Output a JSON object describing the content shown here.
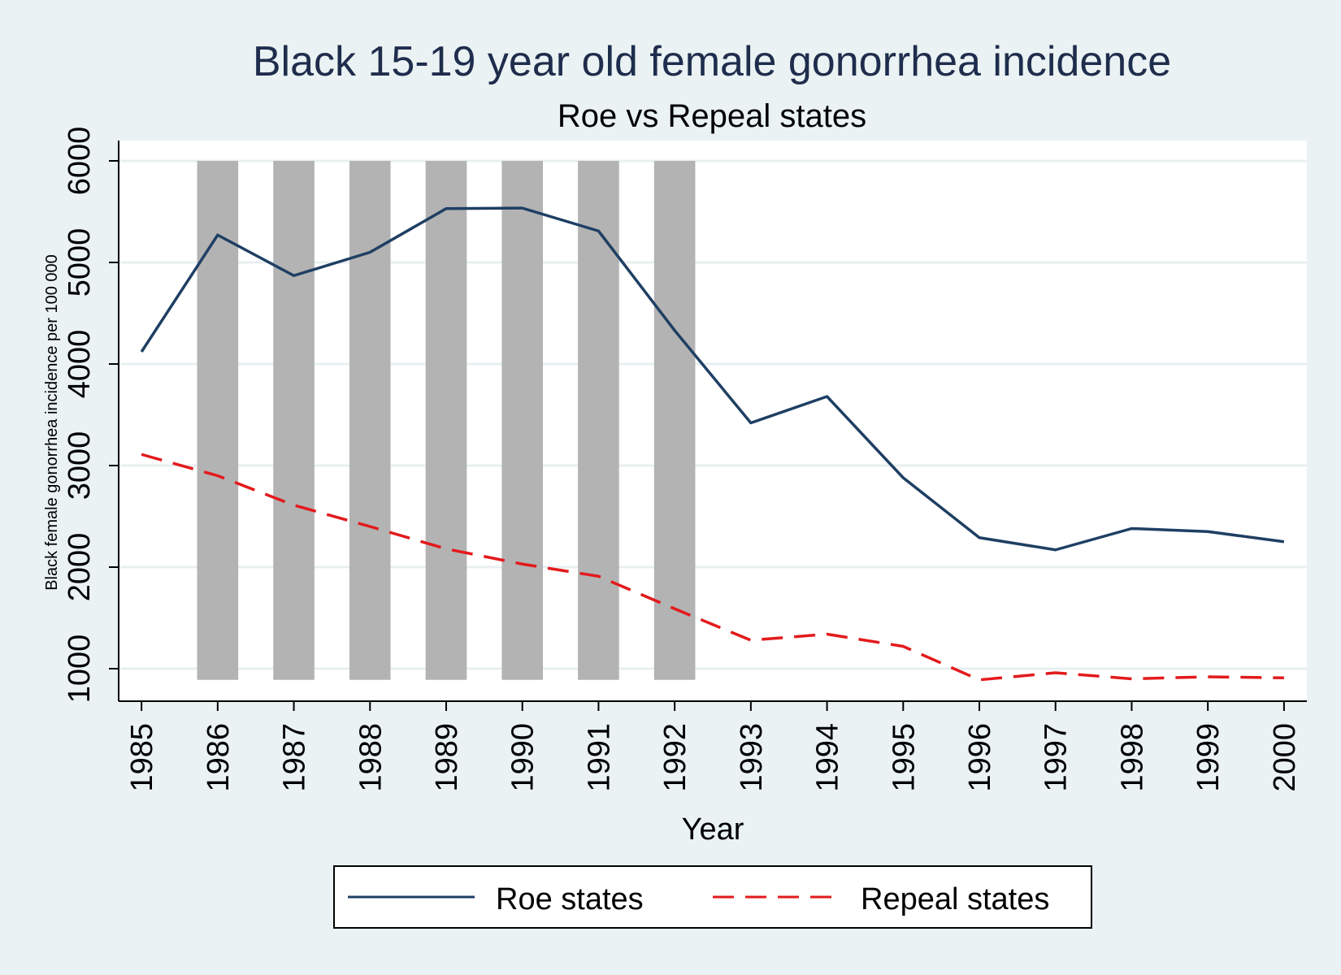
{
  "chart_data": {
    "type": "line",
    "title": "Black 15-19 year old female gonorrhea incidence",
    "subtitle": "Roe vs Repeal states",
    "xlabel": "Year",
    "ylabel": "Black female gonorrhea incidence per 100 000",
    "x": [
      1985,
      1986,
      1987,
      1988,
      1989,
      1990,
      1991,
      1992,
      1993,
      1994,
      1995,
      1996,
      1997,
      1998,
      1999,
      2000
    ],
    "xticks": [
      "1985",
      "1986",
      "1987",
      "1988",
      "1989",
      "1990",
      "1991",
      "1992",
      "1993",
      "1994",
      "1995",
      "1996",
      "1997",
      "1998",
      "1999",
      "2000"
    ],
    "yticks": [
      "1000",
      "2000",
      "3000",
      "4000",
      "5000",
      "6000"
    ],
    "ylim": [
      680,
      6200
    ],
    "xlim": [
      1984.7,
      2000.3
    ],
    "grid": true,
    "legend_position": "bottom",
    "shaded_years": [
      1986,
      1987,
      1988,
      1989,
      1990,
      1991,
      1992
    ],
    "shaded_range": [
      890,
      6000
    ],
    "shade_color": "#b3b3b3",
    "series": [
      {
        "name": "Roe states",
        "color": "#1f3f63",
        "dash": "solid",
        "values": [
          4120,
          5270,
          4870,
          5100,
          5530,
          5535,
          5310,
          4330,
          3420,
          3680,
          2880,
          2290,
          2170,
          2380,
          2350,
          2250
        ]
      },
      {
        "name": "Repeal states",
        "color": "#e31a1c",
        "dash": "dashed",
        "values": [
          3110,
          2900,
          2610,
          2400,
          2180,
          2030,
          1910,
          1590,
          1280,
          1340,
          1220,
          890,
          960,
          900,
          920,
          910
        ]
      }
    ]
  }
}
